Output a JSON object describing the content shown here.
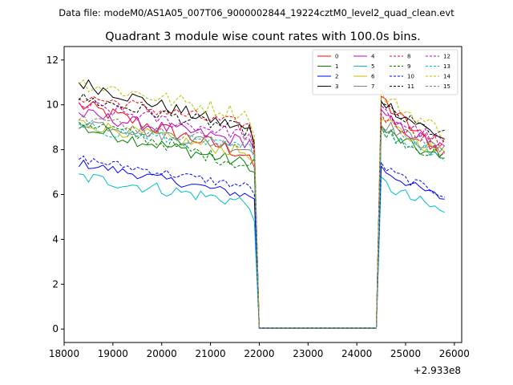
{
  "figure": {
    "header": "Data file: modeM0/AS1A05_007T06_9000002844_19224cztM0_level2_quad_clean.evt"
  },
  "chart_data": {
    "type": "line",
    "title": "Quadrant 3 module wise count rates with 100.0s bins.",
    "xlabel": "",
    "ylabel": "",
    "x_offset_label": "+2.933e8",
    "xlim": [
      18000,
      26150
    ],
    "ylim": [
      -0.6,
      12.6
    ],
    "x_ticks": [
      18000,
      19000,
      20000,
      21000,
      22000,
      23000,
      24000,
      25000,
      26000
    ],
    "y_ticks": [
      0,
      2,
      4,
      6,
      8,
      10,
      12
    ],
    "grid": false,
    "legend_position": "top-right",
    "bin_seconds": 100,
    "segments": [
      {
        "x_start": 18300,
        "x_end": 21900,
        "n": 37
      },
      {
        "x_start": 22000,
        "x_end": 24400,
        "n": 25
      },
      {
        "x_start": 24500,
        "x_end": 25800,
        "n": 14
      }
    ],
    "series": [
      {
        "name": "0",
        "color": "#ff0000",
        "dash": "solid",
        "start": 10.0,
        "end": 7.7,
        "tail": 7.2,
        "gap": 0.05,
        "r2s": 10.4,
        "r2e": 7.8,
        "noise": 0.35
      },
      {
        "name": "1",
        "color": "#008000",
        "dash": "solid",
        "start": 9.0,
        "end": 7.3,
        "tail": 7.0,
        "gap": 0.05,
        "r2s": 9.0,
        "r2e": 7.5,
        "noise": 0.3
      },
      {
        "name": "2",
        "color": "#0000ff",
        "dash": "solid",
        "start": 7.4,
        "end": 5.9,
        "tail": 5.8,
        "gap": 0.03,
        "r2s": 7.2,
        "r2e": 5.8,
        "noise": 0.2
      },
      {
        "name": "3",
        "color": "#000000",
        "dash": "solid",
        "start": 11.0,
        "end": 8.8,
        "tail": 8.3,
        "gap": 0.06,
        "r2s": 10.3,
        "r2e": 8.5,
        "noise": 0.3
      },
      {
        "name": "4",
        "color": "#c000c0",
        "dash": "solid",
        "start": 9.6,
        "end": 8.3,
        "tail": 8.0,
        "gap": 0.05,
        "r2s": 9.6,
        "r2e": 8.0,
        "noise": 0.3
      },
      {
        "name": "5",
        "color": "#00bfbf",
        "dash": "solid",
        "start": 6.8,
        "end": 5.6,
        "tail": 4.8,
        "gap": 0.03,
        "r2s": 6.6,
        "r2e": 5.2,
        "noise": 0.3
      },
      {
        "name": "6",
        "color": "#bfbf00",
        "dash": "solid",
        "start": 9.2,
        "end": 7.8,
        "tail": 7.5,
        "gap": 0.05,
        "r2s": 9.4,
        "r2e": 7.8,
        "noise": 0.3
      },
      {
        "name": "7",
        "color": "#808080",
        "dash": "solid",
        "start": 9.3,
        "end": 8.0,
        "tail": 7.8,
        "gap": 0.05,
        "r2s": 9.3,
        "r2e": 7.9,
        "noise": 0.3
      },
      {
        "name": "8",
        "color": "#ff0000",
        "dash": "dashed",
        "start": 10.4,
        "end": 9.0,
        "tail": 8.0,
        "gap": 0.05,
        "r2s": 9.6,
        "r2e": 8.2,
        "noise": 0.3
      },
      {
        "name": "9",
        "color": "#008000",
        "dash": "dashed",
        "start": 9.3,
        "end": 7.2,
        "tail": 7.6,
        "gap": 0.05,
        "r2s": 9.0,
        "r2e": 7.6,
        "noise": 0.3
      },
      {
        "name": "10",
        "color": "#0000ff",
        "dash": "dashed",
        "start": 7.6,
        "end": 6.3,
        "tail": 6.0,
        "gap": 0.04,
        "r2s": 7.3,
        "r2e": 6.0,
        "noise": 0.2
      },
      {
        "name": "11",
        "color": "#000000",
        "dash": "dashed",
        "start": 10.3,
        "end": 8.8,
        "tail": 8.2,
        "gap": 0.06,
        "r2s": 10.0,
        "r2e": 8.6,
        "noise": 0.3
      },
      {
        "name": "12",
        "color": "#c000c0",
        "dash": "dashed",
        "start": 10.0,
        "end": 8.6,
        "tail": 8.0,
        "gap": 0.05,
        "r2s": 9.8,
        "r2e": 8.3,
        "noise": 0.3
      },
      {
        "name": "13",
        "color": "#00bfbf",
        "dash": "dashed",
        "start": 9.0,
        "end": 8.0,
        "tail": 7.6,
        "gap": 0.05,
        "r2s": 9.0,
        "r2e": 7.7,
        "noise": 0.3
      },
      {
        "name": "14",
        "color": "#bfbf00",
        "dash": "dashed",
        "start": 11.0,
        "end": 9.5,
        "tail": 8.6,
        "gap": 0.06,
        "r2s": 10.5,
        "r2e": 8.8,
        "noise": 0.35
      },
      {
        "name": "15",
        "color": "#808080",
        "dash": "dashed",
        "start": 9.4,
        "end": 8.2,
        "tail": 7.8,
        "gap": 0.05,
        "r2s": 9.2,
        "r2e": 8.0,
        "noise": 0.3
      }
    ]
  }
}
